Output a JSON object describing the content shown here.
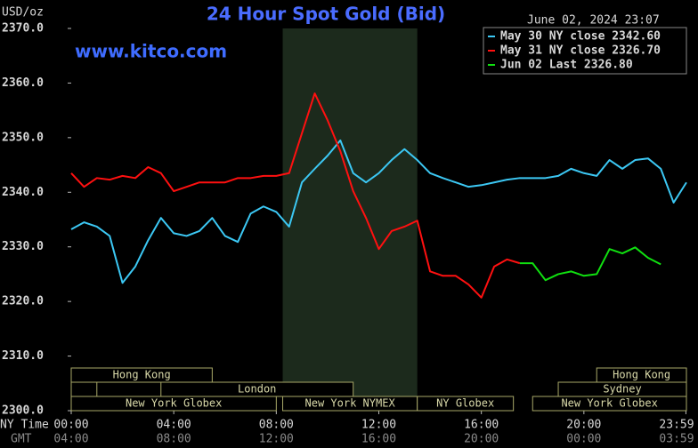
{
  "chart_data": {
    "type": "line",
    "title": "24 Hour Spot Gold (Bid)",
    "timestamp": "June 02, 2024 23:07",
    "watermark": "www.kitco.com",
    "y_label": "USD/oz",
    "x_row_labels": [
      "NY Time",
      "GMT"
    ],
    "x": [
      0,
      0.5,
      1,
      1.5,
      2,
      2.5,
      3,
      3.5,
      4,
      4.5,
      5,
      5.5,
      6,
      6.5,
      7,
      7.5,
      8,
      8.5,
      9,
      9.5,
      10,
      10.5,
      11,
      11.5,
      12,
      12.5,
      13,
      13.5,
      14,
      14.5,
      15,
      15.5,
      16,
      16.5,
      17,
      17.5,
      18,
      18.5,
      19,
      19.5,
      20,
      20.5,
      21,
      21.5,
      22,
      22.5,
      23,
      23.5,
      24
    ],
    "xlim": [
      0,
      24
    ],
    "xticks": [
      {
        "value": 0,
        "label": "00:00"
      },
      {
        "value": 4,
        "label": "04:00"
      },
      {
        "value": 8,
        "label": "08:00"
      },
      {
        "value": 12,
        "label": "12:00"
      },
      {
        "value": 16,
        "label": "16:00"
      },
      {
        "value": 20,
        "label": "20:00"
      },
      {
        "value": 23.98,
        "label": "23:59"
      }
    ],
    "x2ticks": [
      {
        "value": 0,
        "label": "04:00"
      },
      {
        "value": 4,
        "label": "08:00"
      },
      {
        "value": 8,
        "label": "12:00"
      },
      {
        "value": 12,
        "label": "16:00"
      },
      {
        "value": 16,
        "label": "20:00"
      },
      {
        "value": 20,
        "label": "00:00"
      },
      {
        "value": 23.98,
        "label": "03:59"
      }
    ],
    "ylim": [
      2300,
      2370
    ],
    "yticks": [
      {
        "value": 2300,
        "label": "2300.0"
      },
      {
        "value": 2310,
        "label": "2310.0"
      },
      {
        "value": 2320,
        "label": "2320.0"
      },
      {
        "value": 2330,
        "label": "2330.0"
      },
      {
        "value": 2340,
        "label": "2340.0"
      },
      {
        "value": 2350,
        "label": "2350.0"
      },
      {
        "value": 2360,
        "label": "2360.0"
      },
      {
        "value": 2370,
        "label": "2370.0"
      }
    ],
    "grid": false,
    "legend": "top-right",
    "shaded_x": [
      8.25,
      13.5
    ],
    "series": [
      {
        "name": "May 30 NY close 2342.60",
        "color": "#3cc8f4",
        "values": [
          2333.2,
          2334.5,
          2333.7,
          2332,
          2323.4,
          2326.4,
          2331.2,
          2335.3,
          2332.5,
          2332,
          2332.9,
          2335.3,
          2332,
          2330.9,
          2336.1,
          2337.4,
          2336.4,
          2333.7,
          2341.8,
          2344.3,
          2346.7,
          2349.5,
          2343.5,
          2341.8,
          2343.5,
          2345.9,
          2347.9,
          2345.9,
          2343.5,
          2342.6,
          2341.8,
          2341,
          2341.3,
          2341.8,
          2342.3,
          2342.6,
          2342.6,
          2342.6,
          2343,
          2344.3,
          2343.5,
          2343,
          2345.9,
          2344.3,
          2345.9,
          2346.2,
          2344.3,
          2338.1,
          2341.8
        ]
      },
      {
        "name": "May 31 NY close 2326.70",
        "color": "#ff1010",
        "values": [
          2343.5,
          2341,
          2342.6,
          2342.3,
          2343,
          2342.6,
          2344.6,
          2343.5,
          2340.2,
          2341,
          2341.8,
          2341.8,
          2341.8,
          2342.6,
          2342.6,
          2343,
          2343,
          2343.5,
          2350.8,
          2358.1,
          2353.2,
          2347.5,
          2340.2,
          2335.3,
          2329.6,
          2332.9,
          2333.7,
          2334.8,
          2325.5,
          2324.7,
          2324.7,
          2323.1,
          2320.7,
          2326.4,
          2327.7,
          2327,
          null,
          null,
          null,
          null,
          null,
          null,
          null,
          null,
          null,
          null,
          null,
          null,
          null
        ]
      },
      {
        "name": "Jun 02 Last 2326.80",
        "color": "#10e010",
        "values": [
          null,
          null,
          null,
          null,
          null,
          null,
          null,
          null,
          null,
          null,
          null,
          null,
          null,
          null,
          null,
          null,
          null,
          null,
          null,
          null,
          null,
          null,
          null,
          null,
          null,
          null,
          null,
          null,
          null,
          null,
          null,
          null,
          null,
          null,
          null,
          2327,
          2327,
          2323.9,
          2325,
          2325.5,
          2324.7,
          2325,
          2329.6,
          2328.8,
          2329.9,
          2328,
          2326.8,
          null,
          null
        ]
      }
    ],
    "session_rows": [
      [
        {
          "label": "Hong Kong",
          "start": 0,
          "end": 5.5
        },
        {
          "label": "Hong Kong",
          "start": 20.5,
          "end": 24
        }
      ],
      [
        {
          "label": null,
          "start": 0,
          "end": 1
        },
        {
          "label": "London",
          "start": 3.5,
          "end": 11
        },
        {
          "label": "Sydney",
          "start": 19,
          "end": 24
        }
      ],
      [
        {
          "label": "New York Globex",
          "start": 0,
          "end": 8
        },
        {
          "label": "New York NYMEX",
          "start": 8.25,
          "end": 13.5
        },
        {
          "label": "NY Globex",
          "start": 13.5,
          "end": 17.25
        },
        {
          "label": "New York Globex",
          "start": 18,
          "end": 24
        }
      ]
    ]
  }
}
